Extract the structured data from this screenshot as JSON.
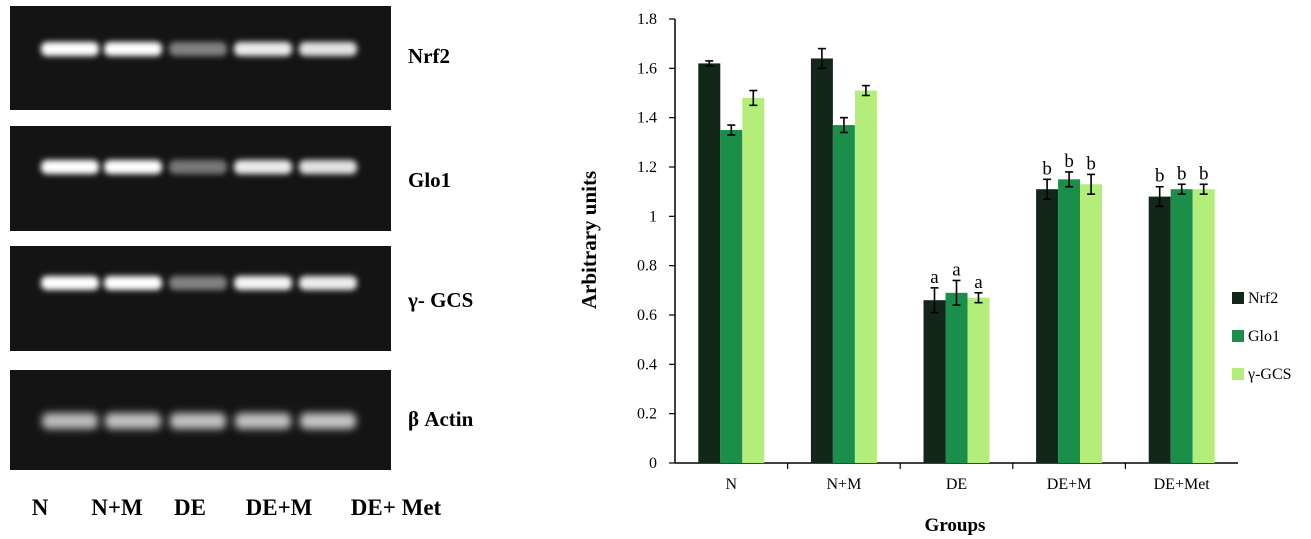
{
  "gel_panel": {
    "genes": [
      "Nrf2",
      "Glo1",
      "γ- GCS",
      "β Actin"
    ],
    "lanes": [
      "N",
      "N+M",
      "DE",
      "DE+M",
      "DE+ Met"
    ],
    "band_intensity": [
      [
        1.0,
        1.0,
        0.35,
        0.9,
        0.85
      ],
      [
        1.0,
        1.0,
        0.3,
        0.9,
        0.85
      ],
      [
        1.0,
        1.0,
        0.35,
        0.95,
        0.9
      ],
      [
        0.65,
        0.68,
        0.68,
        0.68,
        0.7
      ]
    ]
  },
  "chart_data": {
    "type": "bar",
    "categories": [
      "N",
      "N+M",
      "DE",
      "DE+M",
      "DE+Met"
    ],
    "series": [
      {
        "name": "Nrf2",
        "color": "#13261a",
        "values": [
          1.62,
          1.64,
          0.66,
          1.11,
          1.08
        ],
        "errors": [
          0.01,
          0.04,
          0.05,
          0.04,
          0.04
        ],
        "labels": [
          "",
          "",
          "a",
          "b",
          "b"
        ]
      },
      {
        "name": "Glo1",
        "color": "#1a8f4a",
        "values": [
          1.35,
          1.37,
          0.69,
          1.15,
          1.11
        ],
        "errors": [
          0.02,
          0.03,
          0.05,
          0.03,
          0.02
        ],
        "labels": [
          "",
          "",
          "a",
          "b",
          "b"
        ]
      },
      {
        "name": "γ-GCS",
        "color": "#b4ee7a",
        "values": [
          1.48,
          1.51,
          0.67,
          1.13,
          1.11
        ],
        "errors": [
          0.03,
          0.02,
          0.02,
          0.04,
          0.02
        ],
        "labels": [
          "",
          "",
          "a",
          "b",
          "b"
        ]
      }
    ],
    "xlabel": "Groups",
    "ylabel": "Arbitrary units",
    "ylim": [
      0,
      1.8
    ],
    "yticks": [
      "0",
      "0.2",
      "0.4",
      "0.6",
      "0.8",
      "1",
      "1.2",
      "1.4",
      "1.6",
      "1.8"
    ],
    "grid": false,
    "legend_position": "right"
  }
}
